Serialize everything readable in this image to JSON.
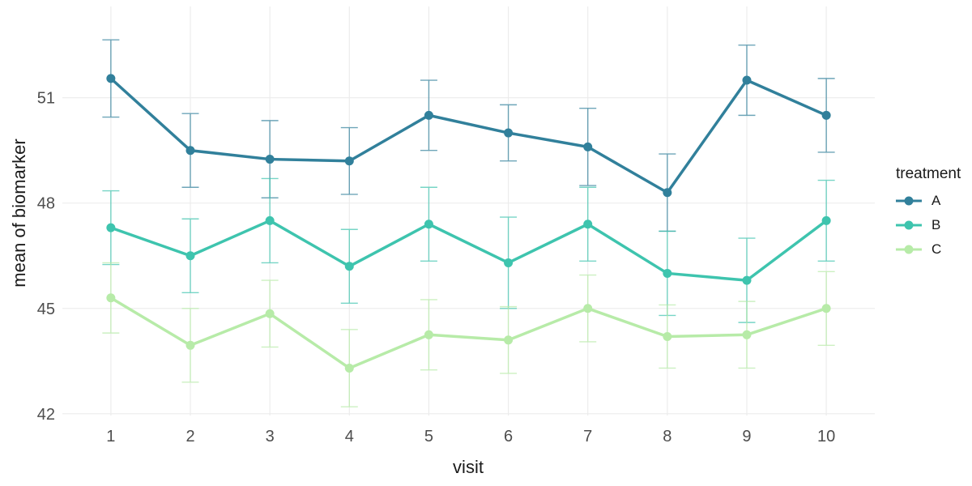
{
  "figure": {
    "background": "#ffffff",
    "grid_color": "#ebebeb",
    "tick_label_color": "#4d4d4d",
    "axis_title_color": "#1a1a1a"
  },
  "chart_data": {
    "type": "line",
    "title": "",
    "xlabel": "visit",
    "ylabel": "mean of biomarker",
    "x": [
      1,
      2,
      3,
      4,
      5,
      6,
      7,
      8,
      9,
      10
    ],
    "xticks": [
      "1",
      "2",
      "3",
      "4",
      "5",
      "6",
      "7",
      "8",
      "9",
      "10"
    ],
    "yticks": [
      42,
      45,
      48,
      51
    ],
    "ytick_labels": [
      "42",
      "45",
      "48",
      "51"
    ],
    "xlim": [
      0.39,
      10.61
    ],
    "ylim": [
      41.95,
      53.6
    ],
    "grid": true,
    "error_bars": true,
    "legend": {
      "title": "treatment",
      "position": "right"
    },
    "series": [
      {
        "name": "A",
        "color": "#31809B",
        "values": [
          51.55,
          49.5,
          49.25,
          49.2,
          50.5,
          50.0,
          49.6,
          48.3,
          51.5,
          50.5
        ],
        "errors": [
          1.1,
          1.05,
          1.1,
          0.95,
          1.0,
          0.8,
          1.1,
          1.1,
          1.0,
          1.05
        ]
      },
      {
        "name": "B",
        "color": "#3EC4AE",
        "values": [
          47.3,
          46.5,
          47.5,
          46.2,
          47.4,
          46.3,
          47.4,
          46.0,
          45.8,
          47.5
        ],
        "errors": [
          1.05,
          1.05,
          1.2,
          1.05,
          1.05,
          1.3,
          1.05,
          1.2,
          1.2,
          1.15
        ]
      },
      {
        "name": "C",
        "color": "#B7EBA8",
        "values": [
          45.3,
          43.95,
          44.85,
          43.3,
          44.25,
          44.1,
          45.0,
          44.2,
          44.25,
          45.0
        ],
        "errors": [
          1.0,
          1.05,
          0.95,
          1.1,
          1.0,
          0.95,
          0.95,
          0.9,
          0.95,
          1.05
        ]
      }
    ]
  }
}
